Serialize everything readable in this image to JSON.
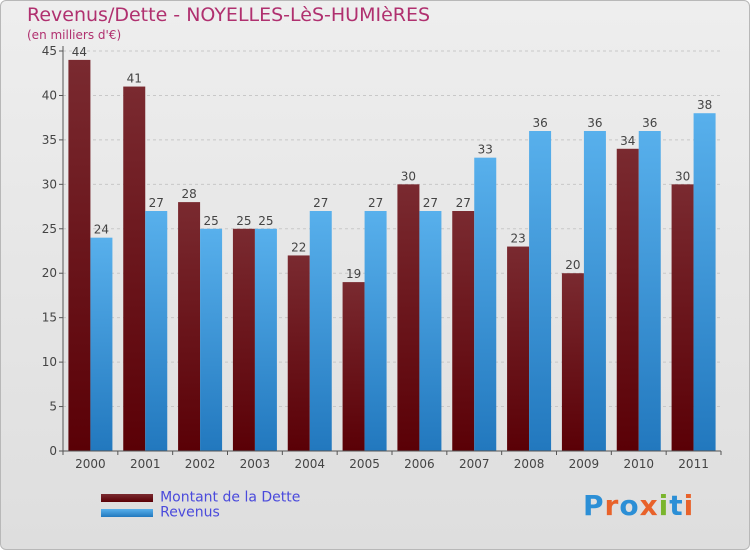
{
  "header": {
    "title": "Revenus/Dette - NOYELLES-LèS-HUMIèRES",
    "subtitle": "(en milliers d'€)"
  },
  "legend": {
    "items": [
      {
        "label": "Montant de la Dette",
        "color": "#6b0d12"
      },
      {
        "label": "Revenus",
        "color": "#3a99dd"
      }
    ]
  },
  "logo": {
    "text": "Proxiti",
    "colors": [
      "#2c8fd6",
      "#e8622a",
      "#2c8fd6",
      "#e8622a",
      "#7ab52d",
      "#2c8fd6",
      "#e8622a"
    ]
  },
  "chart_data": {
    "type": "bar",
    "title": "Revenus/Dette - NOYELLES-LèS-HUMIèRES",
    "ylabel": "(en milliers d'€)",
    "categories": [
      "2000",
      "2001",
      "2002",
      "2003",
      "2004",
      "2005",
      "2006",
      "2007",
      "2008",
      "2009",
      "2010",
      "2011"
    ],
    "series": [
      {
        "name": "Montant de la Dette",
        "color": "#6b0d12",
        "values": [
          44,
          41,
          28,
          25,
          22,
          19,
          30,
          27,
          23,
          20,
          34,
          30
        ]
      },
      {
        "name": "Revenus",
        "color": "#3a99dd",
        "values": [
          24,
          27,
          25,
          25,
          27,
          27,
          27,
          33,
          36,
          36,
          36,
          38
        ]
      }
    ],
    "ylim": [
      0,
      45
    ],
    "yticks": [
      0,
      5,
      10,
      15,
      20,
      25,
      30,
      35,
      40,
      45
    ],
    "grid": true,
    "legend_position": "bottom-left"
  }
}
